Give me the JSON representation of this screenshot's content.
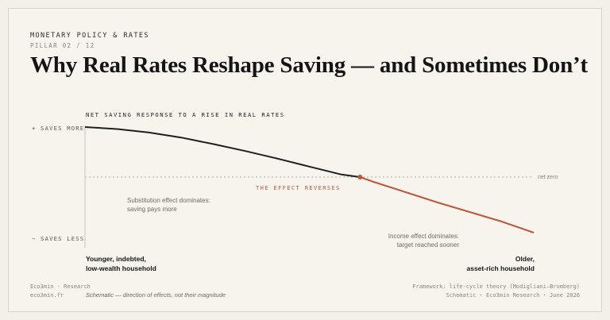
{
  "header": {
    "kicker": "MONETARY POLICY & RATES",
    "pillar": "PILLAR 02 / 12",
    "title": "Why Real Rates Reshape Saving — and Sometimes Don’t"
  },
  "chart": {
    "title": "NET SAVING RESPONSE TO A RISE IN REAL RATES",
    "y_top_label": "+ SAVES MORE",
    "y_bottom_label": "− SAVES LESS",
    "zero_label": "net zero",
    "reversal_label": "THE EFFECT REVERSES",
    "left_annotation": [
      "Substitution effect dominates:",
      "saving pays more"
    ],
    "right_annotation": [
      "Income effect dominates:",
      "target reached sooner"
    ],
    "x_left_label": [
      "Younger, indebted,",
      "low-wealth household"
    ],
    "x_right_label": [
      "Older,",
      "asset-rich household"
    ],
    "colors": {
      "positive_line": "#1f1f1f",
      "negative_line": "#c0573a",
      "marker": "#c0573a",
      "axis": "#c9c4ba",
      "zero_line": "#b6b1a8"
    }
  },
  "chart_data": {
    "type": "line",
    "title": "NET SAVING RESPONSE TO A RISE IN REAL RATES",
    "xlabel": "",
    "ylabel": "",
    "x_categories": [
      "Younger, indebted, low-wealth household",
      "Older, asset-rich household"
    ],
    "y_range_labels": [
      "− SAVES LESS",
      "+ SAVES MORE"
    ],
    "series": [
      {
        "points": [
          [
            0,
            1.0
          ],
          [
            0.1,
            0.96
          ],
          [
            0.2,
            0.89
          ],
          [
            0.3,
            0.79
          ],
          [
            0.4,
            0.66
          ],
          [
            0.5,
            0.52
          ],
          [
            0.6,
            0.37
          ],
          [
            0.7,
            0.21
          ],
          [
            0.8,
            0.05
          ],
          [
            0.858,
            0.0
          ],
          [
            0.9,
            -0.12
          ],
          [
            1.0,
            -0.38
          ],
          [
            1.1,
            -0.64
          ],
          [
            1.2,
            -0.88
          ],
          [
            1.3,
            -1.12
          ],
          [
            1.4,
            -1.4
          ]
        ]
      }
    ],
    "zero_line": true,
    "crossing_marker": [
      0.858,
      0.0
    ]
  },
  "footer": {
    "brand": "Eco3min · Research",
    "site": "eco3min.fr",
    "note": "Schematic — direction of effects, not their magnitude",
    "framework": "Framework: life-cycle theory (Modigliani–Brumberg)",
    "credit": "Schematic · Eco3min Research · June 2026"
  }
}
